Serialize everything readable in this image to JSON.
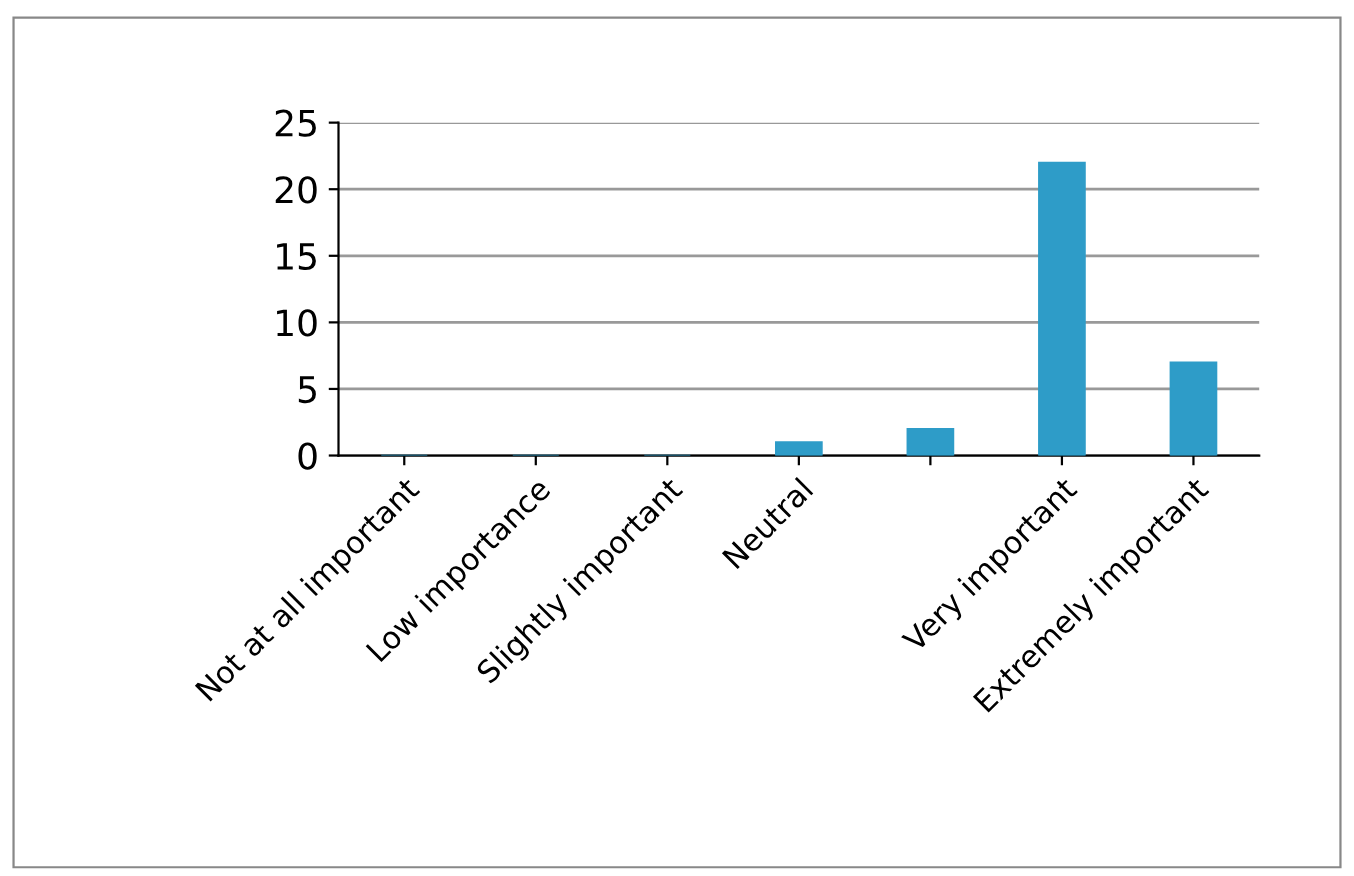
{
  "chart_data": {
    "type": "bar",
    "categories": [
      "Not at all important",
      "Low importance",
      "Slightly important",
      "Neutral",
      null,
      "Very important",
      "Extremely important"
    ],
    "values": [
      0,
      0,
      0,
      1,
      2,
      22,
      7
    ],
    "color": "#2e9cc8",
    "ylim": [
      0,
      25
    ],
    "yticks": [
      0,
      5,
      10,
      15,
      20,
      25
    ],
    "grid": "y"
  }
}
